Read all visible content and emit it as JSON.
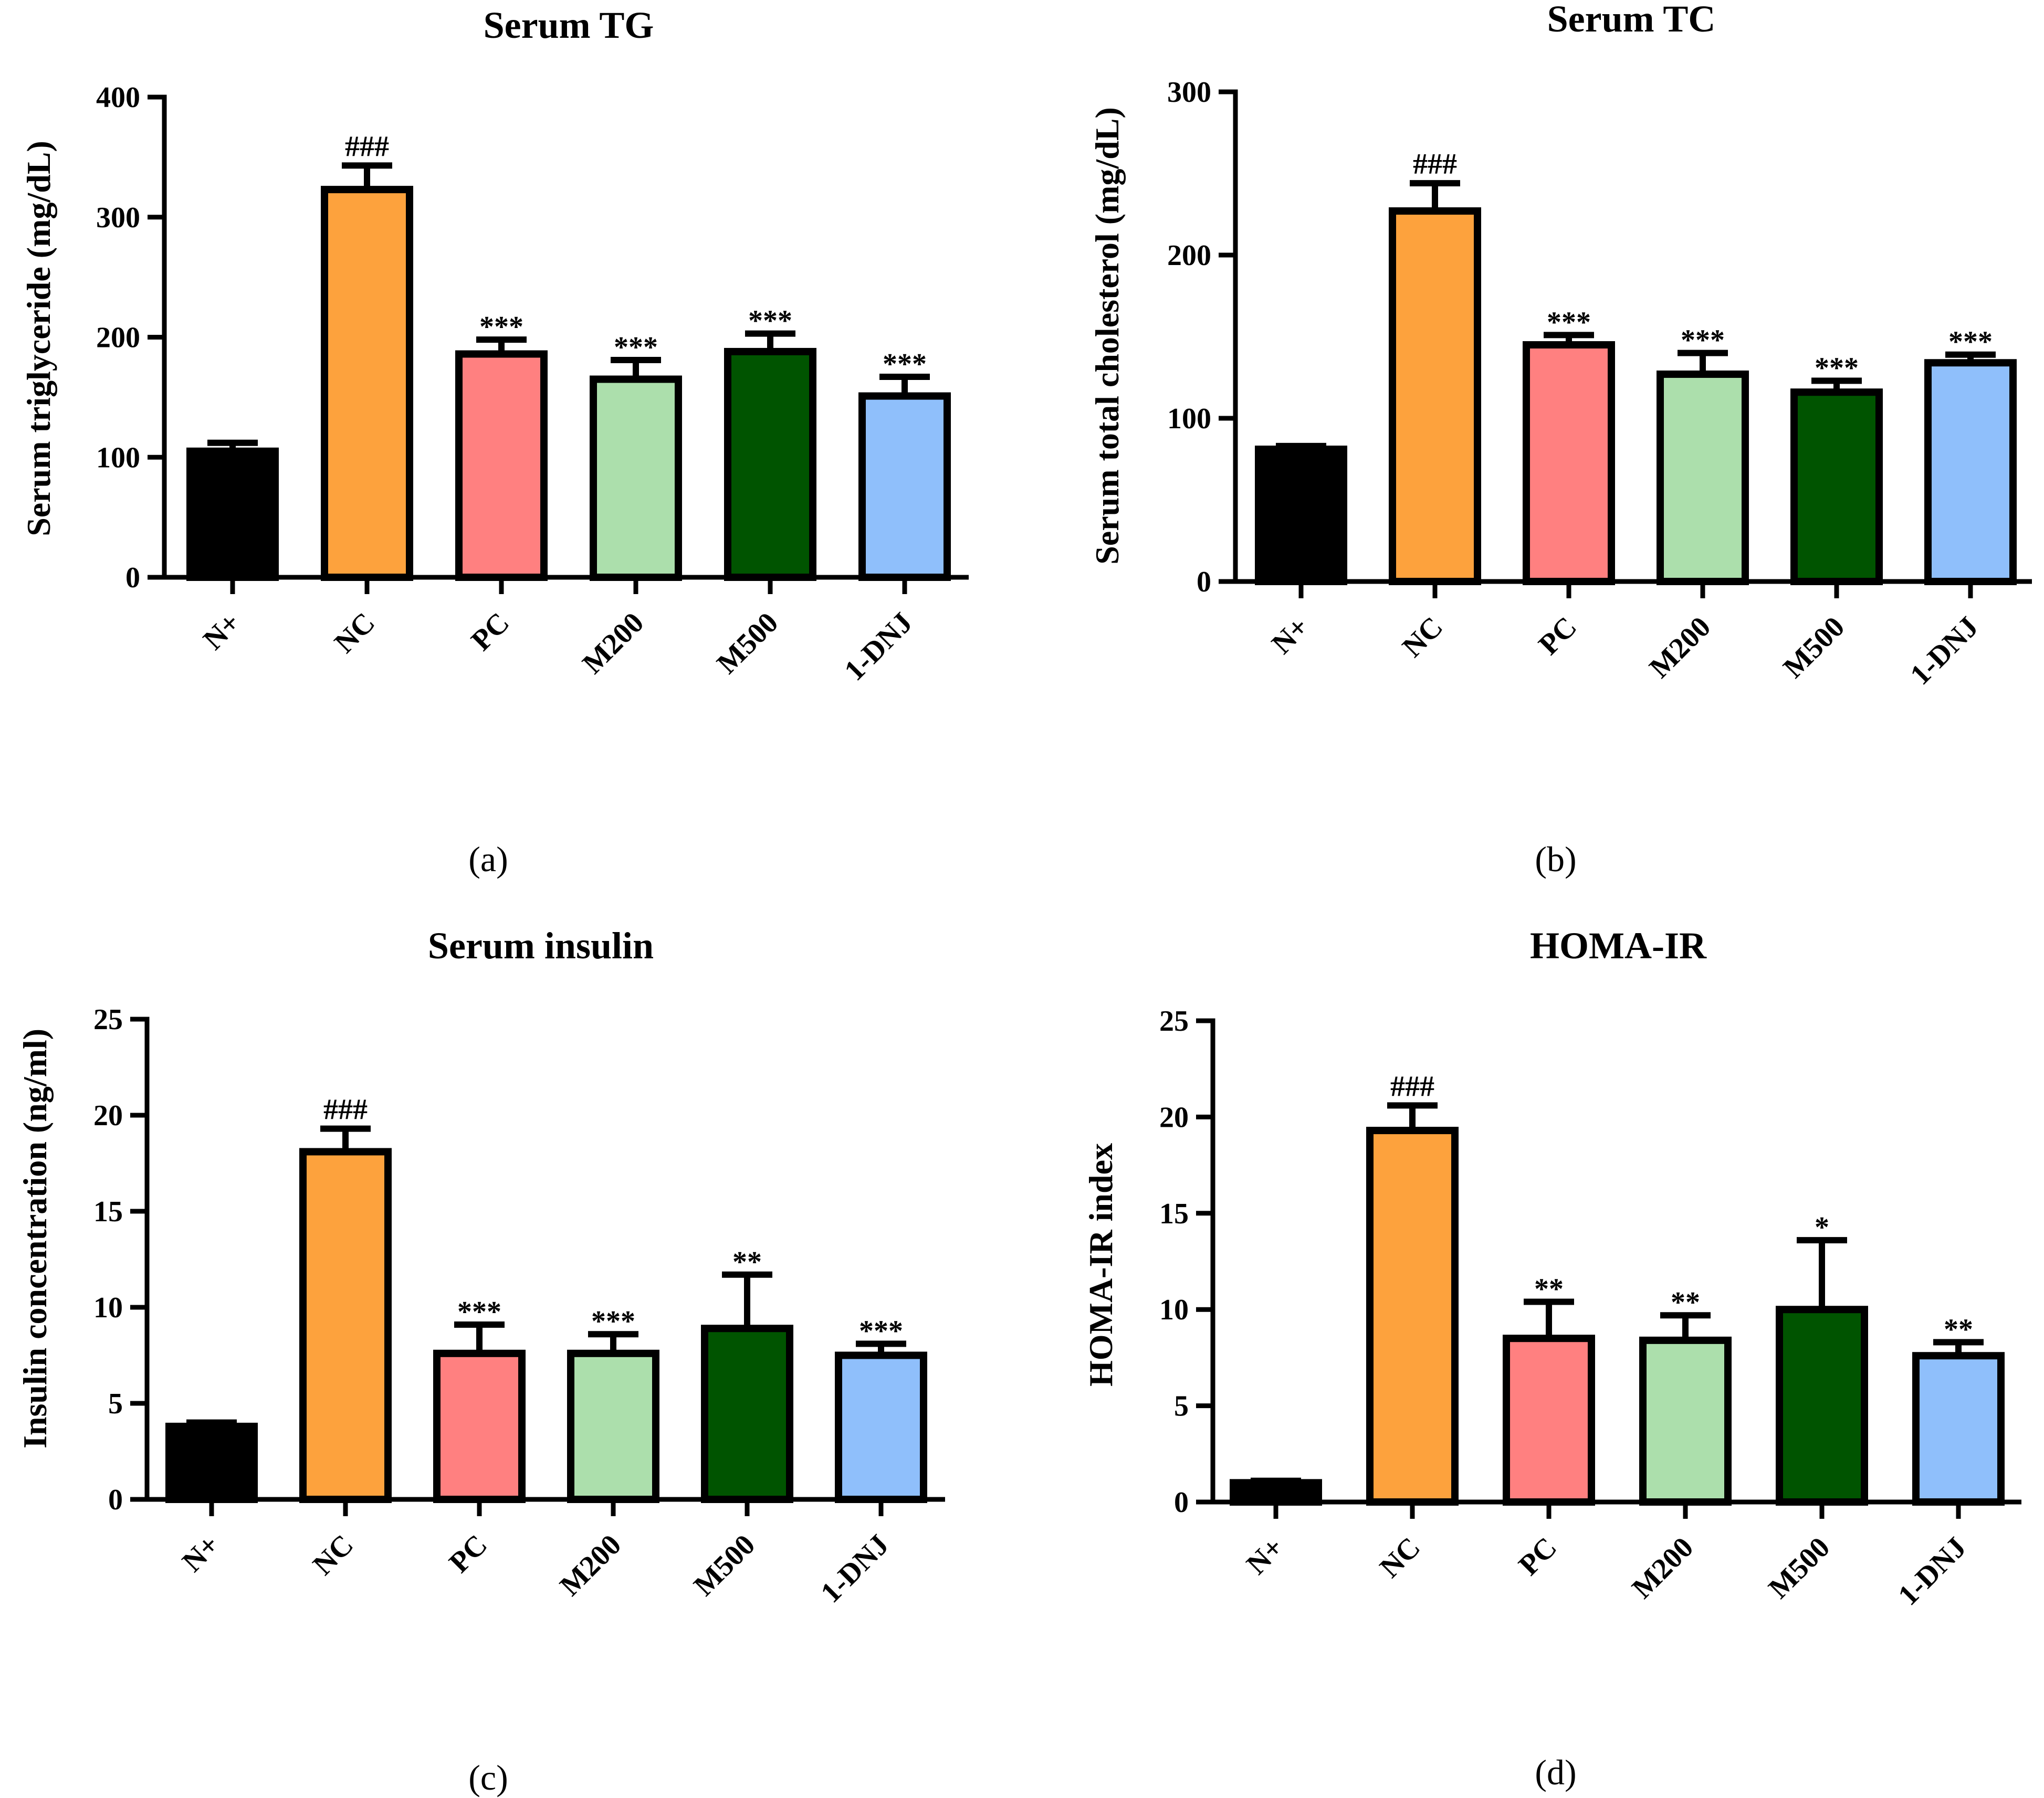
{
  "chart_data": [
    {
      "type": "bar",
      "panel_label": "(a)",
      "title": "Serum TG",
      "xlabel": "",
      "ylabel": "Serum triglyceride (mg/dL)",
      "ylim": [
        0,
        400
      ],
      "yticks": [
        0,
        100,
        200,
        300,
        400
      ],
      "categories": [
        "N+",
        "NC",
        "PC",
        "M200",
        "M500",
        "1-DNJ"
      ],
      "values": [
        105,
        323,
        186,
        165,
        188,
        151
      ],
      "errors": [
        7,
        20,
        12,
        16,
        15,
        16
      ],
      "significance": [
        "",
        "###",
        "***",
        "***",
        "***",
        "***"
      ]
    },
    {
      "type": "bar",
      "panel_label": "(b)",
      "title": "Serum TC",
      "xlabel": "",
      "ylabel": "Serum total cholesterol (mg/dL)",
      "ylim": [
        0,
        300
      ],
      "yticks": [
        0,
        100,
        200,
        300
      ],
      "categories": [
        "N+",
        "NC",
        "PC",
        "M200",
        "M500",
        "1-DNJ"
      ],
      "values": [
        81,
        227,
        145,
        127,
        116,
        134
      ],
      "errors": [
        2,
        17,
        6,
        13,
        7,
        5
      ],
      "significance": [
        "",
        "###",
        "***",
        "***",
        "***",
        "***"
      ]
    },
    {
      "type": "bar",
      "panel_label": "(c)",
      "title": "Serum insulin",
      "xlabel": "",
      "ylabel": "Insulin concentration (ng/ml)",
      "ylim": [
        0,
        25
      ],
      "yticks": [
        0,
        5,
        10,
        15,
        20,
        25
      ],
      "categories": [
        "N+",
        "NC",
        "PC",
        "M200",
        "M500",
        "1-DNJ"
      ],
      "values": [
        3.8,
        18.1,
        7.6,
        7.6,
        8.9,
        7.5
      ],
      "errors": [
        0.2,
        1.2,
        1.5,
        1.0,
        2.8,
        0.6
      ],
      "significance": [
        "",
        "###",
        "***",
        "***",
        "**",
        "***"
      ]
    },
    {
      "type": "bar",
      "panel_label": "(d)",
      "title": "HOMA-IR",
      "xlabel": "",
      "ylabel": "HOMA-IR index",
      "ylim": [
        0,
        25
      ],
      "yticks": [
        0,
        5,
        10,
        15,
        20,
        25
      ],
      "categories": [
        "N+",
        "NC",
        "PC",
        "M200",
        "M500",
        "1-DNJ"
      ],
      "values": [
        1.0,
        19.3,
        8.5,
        8.4,
        10.0,
        7.6
      ],
      "errors": [
        0.1,
        1.3,
        1.9,
        1.3,
        3.6,
        0.7
      ],
      "significance": [
        "",
        "###",
        "**",
        "**",
        "*",
        "**"
      ]
    }
  ],
  "colors": {
    "bar_fills": [
      "#000000",
      "#fda23d",
      "#ff8080",
      "#acdfac",
      "#005400",
      "#8fbffb"
    ],
    "stroke": "#000000"
  }
}
